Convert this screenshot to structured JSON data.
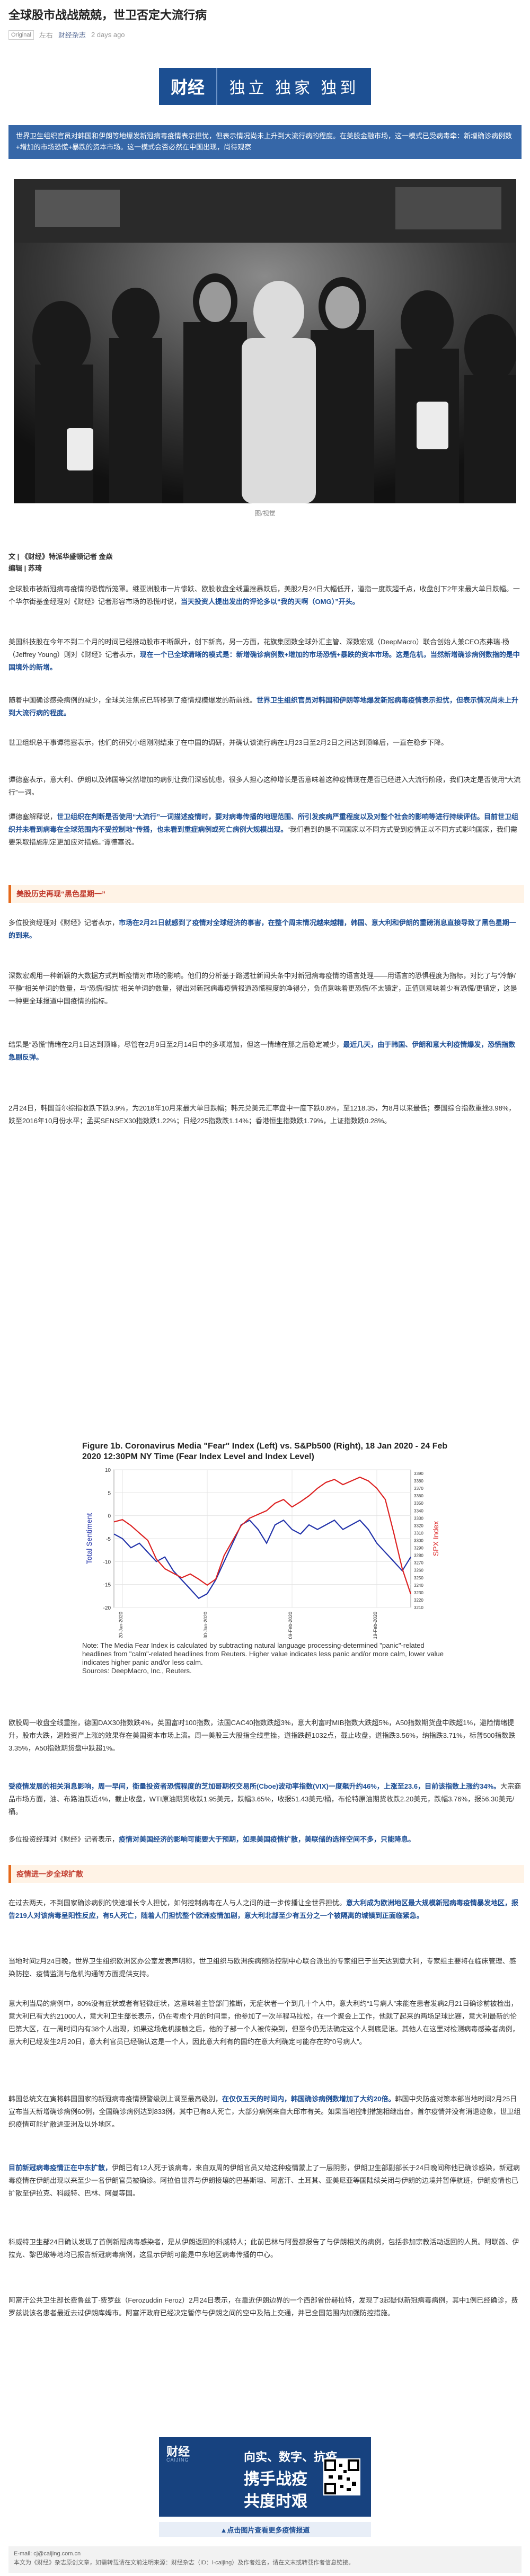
{
  "header": {
    "title": "全球股市战战兢兢，世卫否定大流行病",
    "tag": "Original",
    "author": "左右",
    "source": "财经杂志",
    "time": "2 days ago"
  },
  "banner": {
    "logo": "财经",
    "slogan": "独立 独家 独到"
  },
  "intro": "世界卫生组织官员对韩国和伊朗等地爆发新冠病毒疫情表示担忧，但表示情况尚未上升到大流行病的程度。在美股金融市场，这一模式已受病毒牵：新增确诊病例数+增加的市场恐慌+暴跌的资本市场。这一模式会否必然在中国出现，尚待观察",
  "photo_caption": "图/视觉",
  "byline": {
    "line1": "文 | 《财经》特派华盛顿记者 金焱",
    "line2": "编辑 | 苏琦"
  },
  "paragraphs": {
    "p1a": "全球股市被新冠病毒疫情的恐慌所笼罩。继亚洲股市一片惨跌、欧股收盘全线重挫暴跌后，美股2月24日大幅低开，道指一度跌超千点，收盘创下2年来最大单日跌幅。一个华尔街基金经理对《财经》记者形容市场的恐慌时说，",
    "p1b": "当天投资人提出发出的评论多以“我的天啊（OMG）”开头。",
    "p2a": "美国科技股在今年不到二个月的时间已经推动股市不断飙升，创下新高，另一方面，花旗集团数全球外汇主管、深数宏观（DeepMacro）联合创始人兼CEO杰弗瑞·杨（Jeffrey Young）则对《财经》记者表示，",
    "p2b": "现在一个已全球清晰的模式是：新增确诊病例数+增加的市场恐慌+暴跌的资本市场。这是危机，当然新增确诊病例数指的是中国境外的新增。",
    "p3a": "随着中国确诊感染病例的减少，全球关注焦点已转移到了疫情规模爆发的新前线。",
    "p3b": "世界卫生组织官员对韩国和伊朗等地爆发新冠病毒疫情表示担忧，但表示情况尚未上升到大流行病的程度。",
    "p4": "世卫组织总干事谭德塞表示，他们的研究小组刚刚结束了在中国的调研，并确认该流行病在1月23日至2月2日之间达到顶峰后，一直在稳步下降。",
    "p5": "谭德塞表示，意大利、伊朗以及韩国等突然增加的病例让我们深感忧虑，很多人担心这种增长是否意味着这种疫情现在是否已经进入大流行阶段，我们决定是否使用“大流行”一词。",
    "p6a": "谭德塞解释说，",
    "p6b": "世卫组织在判断是否使用“大流行”一词描述疫情时，要对病毒传播的地理范围、所引发疾病严重程度以及对整个社会的影响等进行持续评估。目前世卫组织并未看到病毒在全球范围内不受控制地“传播，也未看到重症病例或死亡病例大规模出现。",
    "p6c": "“我们看到的是不同国家以不同方式受到疫情正以不同方式影响国家，我们需要采取措施制定更加应对措施。”谭德塞说。",
    "p7": "多位投资经理对《财经》记者表示，",
    "p7b": "市场在2月21日就感到了疫情对全球经济的事害，在整个周末情况越来越糟，韩国、意大利和伊朗的重磅消息直接导致了黑色星期一的到来。",
    "p8": "深数宏观用一种新颖的大数据方式判断疫情对市场的影响。他们的分析基于路透社新闻头条中对新冠病毒疫情的语言处理——用语言的恐惧程度为指标，对比了与“冷静/平静”相关单词的数量，与“恐慌/担忧”相关单词的数量，得出对新冠病毒疫情报道恐慌程度的净得分，负值意味着更恐慌/不太镇定，正值则意味着少有恐慌/更镇定，这是一种更全球报道中国疫情的指标。",
    "p9a": "结果是“恐慌”情绪在2月1日达到顶峰，尽管在2月9日至2月14日中的多项增加，但这一情绪在那之后稳定减少，",
    "p9b": "最近几天，由于韩国、伊朗和意大利疫情爆发，恐慌指数急剧反弹。",
    "p10": "2月24日，韩国首尔综指收跌下跌3.9%，为2018年10月来最大单日跌幅；韩元兑美元汇率盘中一度下跌0.8%，至1218.35，为8月以来最低；泰国综合指数重挫3.98%，跌至2016年10月份水平；孟买SENSEX30指数跌1.22%；日经225指数跌1.14%；香港恒生指数跌1.79%，上证指数跌0.28%。",
    "p11a": "欧股周一收盘全线重挫，德国DAX30指数跌4%，英国富时100指数，法国CAC40指数跌超3%，意大利富时MIB指数大跌超5%，A50指数期货盘中跌超1%，避险情绪提升，股市大跌，避险资产上涨的效果存在美国资本市场上演。周一美股三大股指全线重挫，道指跌超1032点，截止收盘，道指跌3.56%，纳指跌3.71%，标普500指数跌3.35%，A50指数期货盘中跌超1%。",
    "p11b": "受疫情发展的相关消息影响，周一早间，衡量投资者恐慌程度的芝加哥期权交易所(Cboe)波动率指数(VIX)一度飙升约46%，上涨至23.6，目前该指数上涨约34%。",
    "p11c": "大宗商品市场方面，油、布路油跌近4%，截止收盘，WTI原油期货收跌1.95美元，跌幅3.65%，收报51.43美元/桶，布伦特原油期货收跌2.20美元，跌幅3.76%，报56.30美元/桶。",
    "p12a": "多位投资经理对《财经》记者表示，",
    "p12b": "疫情对美国经济的影响可能要大于预期，如果美国疫情扩散，美联储的选择空间不多，只能降息。",
    "p13a": "在过去两天，不到国家确诊病例的快速增长令人担忧，如何控制病毒在人与人之间的进一步传播让全世界担忧。",
    "p13b": "意大利成为欧洲地区最大规模新冠病毒疫情暴发地区，报告219人对该病毒呈阳性反应，有5人死亡，随着人们担忧整个欧洲疫情加剧，意大利北部至少有五分之一个被隔离的城镇到正面临紧急。",
    "p14": "当地时间2月24日晚，世界卫生组织欧洲区办公室发表声明称，世卫组织与欧洲疾病预防控制中心联合派出的专家组已于当天达到意大利，专家组主要将在临床管理、感染防控、疫情监测与危机沟通等方面提供支持。",
    "p15": "意大利当局的病例中，80%没有症状或者有轻微症状，这意味着主管部门推断，无症状者一个到几十个人中，意大利约“1号病人”未能在患者发病2月21日确诊前被检出，意大利已有大约21000人，意大利卫生部长表示，仍在考虑个月的时间里，他参加了一次半程马拉松，在一个聚会上工作，他就了起来的两场足球比赛，意大利最新的伦巴第大区，在一周时间内有38个人出现，如果这场危机接触之后，他的子部一个人被传染到，但至今仍无法确定这个人到底是谁。其他人在这里对检测病毒感染者病例，意大利已经发生2月20日，意大利官员已经确认这是一个人，因此意大利有的国约在意大利确定可能存在的“0号病人”。",
    "p16a": "韩国总统文在寅将韩国国家的新冠病毒疫情预警级别上调至最高级别，",
    "p16b": "在仅仅五天的时间内，韩国确诊病例数增加了大约20倍。",
    "p16c": "韩国中央防疫对策本部当地时间2月25日宣布当天新增确诊病例60例，全国确诊病例达到833例，其中已有8人死亡，大部分病例来自大邱市有关。如果当地控制措施相继出台。首尔疫情并没有消退迹象，世卫组织疫情可能扩散进亚洲及以外地区。",
    "p17a": "目前新冠病毒疫情正在中东扩散，",
    "p17b": "伊朗已有12人死于该病毒，来自双周的伊朗官员又给这种疫情蒙上了一层阴影，伊朗卫生部副部长于24日晚间称他已确诊感染，新冠病毒疫情在伊朗出现以来至少一名伊朗官员被确诊。阿拉伯世界与伊朗接壤的巴基斯坦、阿富汗、土耳其、亚美尼亚等国陆续关闭与伊朗的边境并暂停航班，伊朗疫情也已扩散至伊拉克、科威特、巴林、阿曼等国。",
    "p18": "科威特卫生部24日确认发现了首例新冠病毒感染者，是从伊朗返回的科威特人；此前巴林与阿曼都报告了与伊朗相关的病例，包括参加宗教活动返回的人员。阿联酋、伊拉克、黎巴嫩等地均已报告新冠病毒病例，这显示伊朗可能是中东地区病毒传播的中心。",
    "p19": "阿富汗公共卫生部长费鲁兹丁·费罗兹（Ferozuddin Feroz）2月24日表示，在靠近伊朗边界的一个西部省份赫拉特，发现了3起疑似新冠病毒病例，其中1例已经确诊，费罗兹说该名患者最近去过伊朗库姆市。阿富汗政府已经决定暂停与伊朗之间的空中及陆上交通，并已全国范围内加强防控措施。"
  },
  "sections": {
    "s1": "美股历史再现“黑色星期一”",
    "s2": "疫情进一步全球扩散"
  },
  "chart_data": {
    "type": "line",
    "title": "Figure 1b. Coronavirus Media \"Fear\" Index (Left) vs. S&Pb500 (Right), 18 Jan 2020 - 24 Feb 2020 12:30PM NY Time (Fear Index Level and Index Level)",
    "xlabel": "",
    "ylabel": "Total Sentiment",
    "y2label": "SPX Index",
    "x_ticks": [
      "20-Jan-2020",
      "30-Jan-2020",
      "09-Feb-2020",
      "19-Feb-2020"
    ],
    "y_ticks": [
      10,
      5,
      0,
      -5,
      -10,
      -15,
      -20
    ],
    "y2_ticks": [
      3390,
      3380,
      3370,
      3360,
      3350,
      3340,
      3330,
      3320,
      3310,
      3300,
      3290,
      3280,
      3270,
      3260,
      3250,
      3240,
      3230,
      3220,
      3210
    ],
    "ylim": [
      -20,
      10
    ],
    "y2lim": [
      3210,
      3395
    ],
    "grid": true,
    "series": [
      {
        "axis": "left",
        "color": "#2233aa",
        "values": [
          [
            0,
            -4
          ],
          [
            1,
            -5
          ],
          [
            2,
            -7
          ],
          [
            3,
            -6
          ],
          [
            4,
            -8
          ],
          [
            5,
            -10
          ],
          [
            6,
            -9
          ],
          [
            7,
            -12
          ],
          [
            8,
            -14
          ],
          [
            9,
            -16
          ],
          [
            10,
            -18
          ],
          [
            11,
            -17
          ],
          [
            12,
            -14
          ],
          [
            13,
            -10
          ],
          [
            14,
            -6
          ],
          [
            15,
            -2
          ],
          [
            16,
            -1
          ],
          [
            17,
            -3
          ],
          [
            18,
            -6
          ],
          [
            19,
            -2
          ],
          [
            20,
            -1
          ],
          [
            21,
            -3
          ],
          [
            22,
            -4
          ],
          [
            23,
            -2
          ],
          [
            24,
            -3
          ],
          [
            25,
            -2
          ],
          [
            26,
            -1
          ],
          [
            27,
            -3
          ],
          [
            28,
            -2
          ],
          [
            29,
            -1
          ],
          [
            30,
            -3
          ],
          [
            31,
            -6
          ],
          [
            32,
            -8
          ],
          [
            33,
            -10
          ],
          [
            34,
            -12
          ],
          [
            35,
            -9
          ]
        ]
      },
      {
        "axis": "right",
        "color": "#dd2222",
        "values": [
          [
            0,
            3325
          ],
          [
            1,
            3328
          ],
          [
            2,
            3320
          ],
          [
            3,
            3310
          ],
          [
            4,
            3300
          ],
          [
            5,
            3275
          ],
          [
            6,
            3262
          ],
          [
            7,
            3256
          ],
          [
            8,
            3250
          ],
          [
            9,
            3255
          ],
          [
            10,
            3248
          ],
          [
            11,
            3240
          ],
          [
            12,
            3248
          ],
          [
            13,
            3280
          ],
          [
            14,
            3300
          ],
          [
            15,
            3320
          ],
          [
            16,
            3330
          ],
          [
            17,
            3335
          ],
          [
            18,
            3340
          ],
          [
            19,
            3350
          ],
          [
            20,
            3355
          ],
          [
            21,
            3345
          ],
          [
            22,
            3352
          ],
          [
            23,
            3360
          ],
          [
            24,
            3370
          ],
          [
            25,
            3378
          ],
          [
            26,
            3382
          ],
          [
            27,
            3375
          ],
          [
            28,
            3380
          ],
          [
            29,
            3385
          ],
          [
            30,
            3380
          ],
          [
            31,
            3370
          ],
          [
            32,
            3355
          ],
          [
            33,
            3310
          ],
          [
            34,
            3262
          ],
          [
            35,
            3228
          ]
        ]
      }
    ],
    "note": "Note: The Media Fear Index is calculated by subtracting natural language processing-determined \"panic\"-related headlines from \"calm\"-related headlines from Reuters. Higher value indicates less panic and/or more calm, lower value indicates higher panic and/or less calm.",
    "sources": "Sources: DeepMacro, Inc., Reuters."
  },
  "ad": {
    "logo": "财经",
    "sub": "CAIJING",
    "l1": "向实、数字、抗疫",
    "l2": "携手战疫",
    "l3": "共度时艰",
    "caption": "▲点击图片查看更多疫情报道"
  },
  "footer": {
    "line1": "E-mail: cj@caijing.com.cn",
    "line2": "本文为《财经》杂志原创文章，如需转载请在文前注明来源：财经杂志（ID：i-caijing）及作者姓名，请在文末或转载作者信息链接。"
  },
  "colors": {
    "brand": "#1c4f92",
    "intro_bg": "#3667a8",
    "highlight": "#1e4f95",
    "alert": "#b71c1c",
    "section_accent": "#e56a1d"
  }
}
